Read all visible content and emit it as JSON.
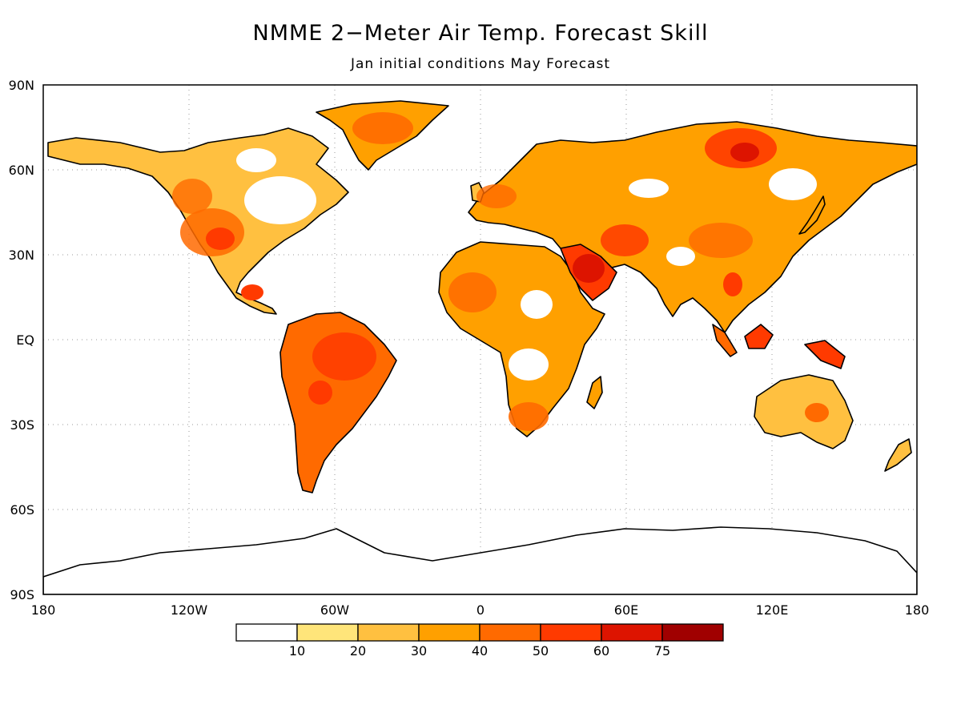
{
  "title": "NMME 2−Meter Air Temp. Forecast Skill",
  "subtitle": "Jan initial conditions  May Forecast",
  "axes": {
    "lat_labels": [
      "90N",
      "60N",
      "30N",
      "EQ",
      "30S",
      "60S",
      "90S"
    ],
    "lon_labels": [
      "180",
      "120W",
      "60W",
      "0",
      "60E",
      "120E",
      "180"
    ],
    "lat_range": [
      -90,
      90
    ],
    "lon_range": [
      -180,
      180
    ],
    "grid": "dotted"
  },
  "legend": {
    "placement": "bottom",
    "labels": [
      "10",
      "20",
      "30",
      "40",
      "50",
      "60",
      "75"
    ],
    "colors": [
      "#ffffff",
      "#ffe57a",
      "#ffc040",
      "#ffa000",
      "#ff6a00",
      "#ff3a00",
      "#dd1400",
      "#a00000"
    ]
  },
  "map": {
    "projection": "cylindrical equidistant",
    "land_outline": "#000000",
    "ocean": "#ffffff"
  }
}
